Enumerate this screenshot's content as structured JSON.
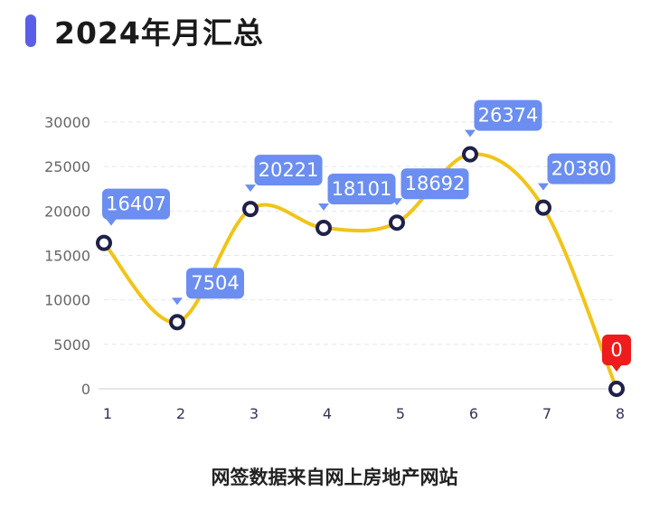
{
  "header": {
    "title": "2024年月汇总"
  },
  "caption": "网签数据来自网上房地产网站",
  "colors": {
    "accent": "#5b5fe8",
    "line": "#f0c419",
    "label_bg": "#6b8ef0",
    "highlight_bg": "#ee1c1c",
    "point_stroke": "#1f2148"
  },
  "chart_data": {
    "type": "line",
    "categories": [
      "1",
      "2",
      "3",
      "4",
      "5",
      "6",
      "7",
      "8"
    ],
    "values": [
      16407,
      7504,
      20221,
      18101,
      18692,
      26374,
      20380,
      0
    ],
    "highlight_index": 7,
    "yticks": [
      "0",
      "5000",
      "10000",
      "15000",
      "20000",
      "25000",
      "30000"
    ],
    "ylim": [
      0,
      30000
    ],
    "smooth": true,
    "grid": true,
    "title": "",
    "xlabel": "",
    "ylabel": ""
  }
}
